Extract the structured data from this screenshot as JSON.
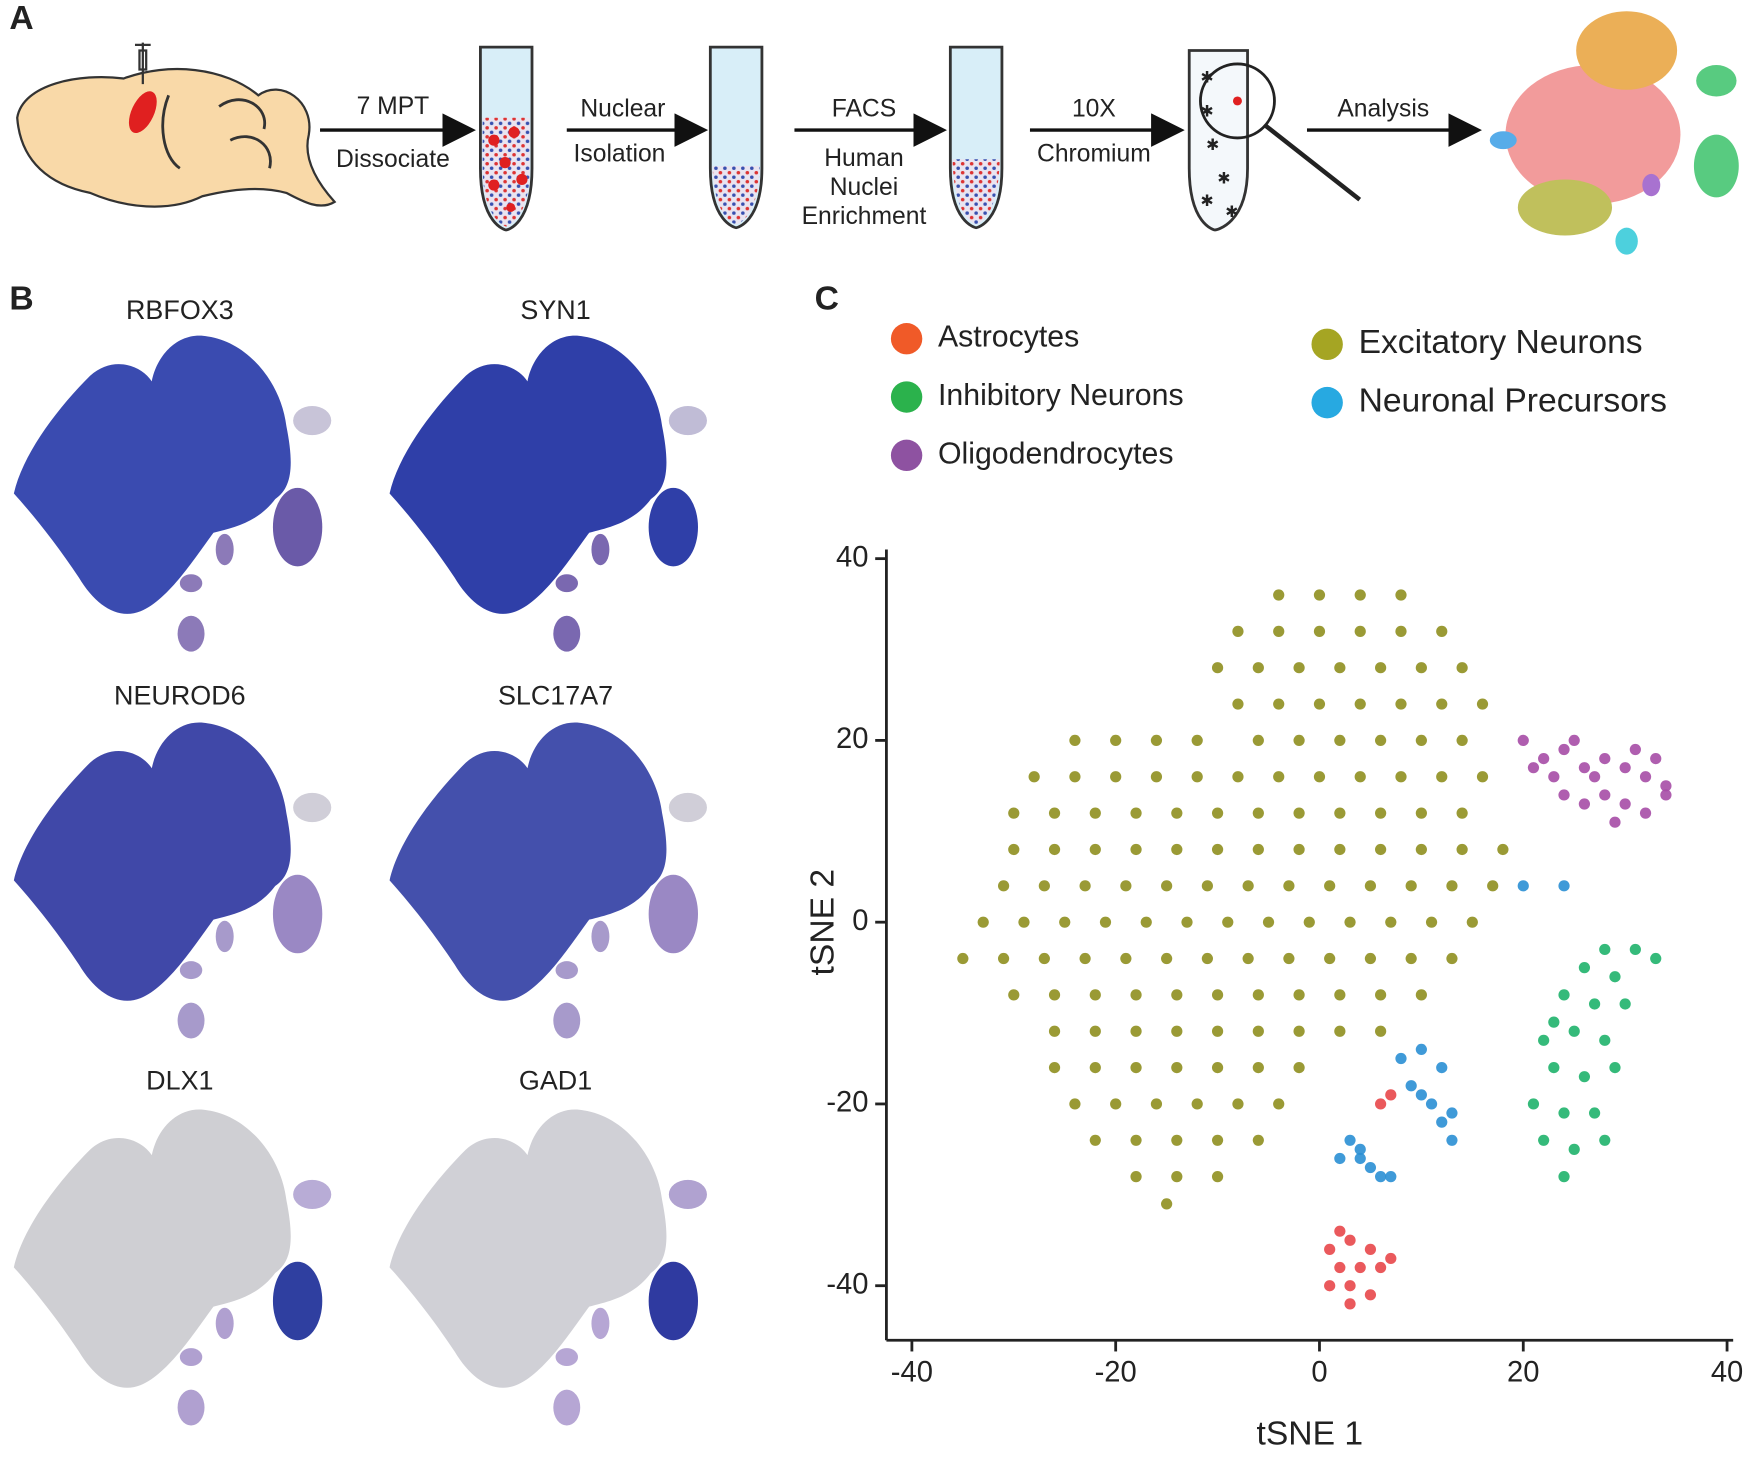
{
  "panel_labels": [
    "A",
    "B",
    "C"
  ],
  "workflow": {
    "steps": [
      {
        "lines": [
          "7 MPT",
          "Dissociate"
        ]
      },
      {
        "lines": [
          "Nuclear",
          "Isolation"
        ]
      },
      {
        "lines": [
          "FACS",
          "Human",
          "Nuclei",
          "Enrichment"
        ]
      },
      {
        "lines": [
          "10X",
          "Chromium"
        ]
      },
      {
        "lines": [
          "Analysis"
        ]
      }
    ]
  },
  "feature_plots": [
    {
      "gene": "RBFOX3"
    },
    {
      "gene": "SYN1"
    },
    {
      "gene": "NEUROD6"
    },
    {
      "gene": "SLC17A7"
    },
    {
      "gene": "DLX1"
    },
    {
      "gene": "GAD1"
    }
  ],
  "chart_data": {
    "type": "scatter",
    "xlabel": "tSNE 1",
    "ylabel": "tSNE 2",
    "xlim": [
      -42.5,
      40.6
    ],
    "ylim": [
      -46,
      41
    ],
    "xticks": [
      -40,
      -20,
      0,
      20,
      40
    ],
    "yticks": [
      -40,
      -20,
      0,
      20,
      40
    ],
    "series": [
      {
        "name": "Astrocytes",
        "color": "#f05a28",
        "point_color": "#e8474a",
        "x": [
          1,
          3,
          5,
          2,
          4,
          6,
          1,
          3,
          5,
          3,
          7,
          2,
          6,
          7
        ],
        "y": [
          -36,
          -35,
          -36,
          -38,
          -38,
          -38,
          -40,
          -40,
          -41,
          -42,
          -37,
          -34,
          -20,
          -19
        ]
      },
      {
        "name": "Inhibitory Neurons",
        "color": "#2bb24c",
        "point_color": "#1fb36b",
        "x": [
          28,
          31,
          33,
          26,
          29,
          24,
          27,
          25,
          22,
          28,
          23,
          26,
          29,
          21,
          24,
          27,
          22,
          25,
          28,
          24,
          30,
          23
        ],
        "y": [
          -3,
          -3,
          -4,
          -5,
          -6,
          -8,
          -9,
          -12,
          -13,
          -13,
          -16,
          -17,
          -16,
          -20,
          -21,
          -21,
          -24,
          -25,
          -24,
          -28,
          -9,
          -11
        ]
      },
      {
        "name": "Oligodendrocytes",
        "color": "#8e52a1",
        "point_color": "#a64ca6",
        "x": [
          22,
          24,
          26,
          28,
          30,
          32,
          34,
          24,
          26,
          28,
          30,
          32,
          34,
          27,
          31,
          29,
          23,
          33,
          25,
          20,
          21
        ],
        "y": [
          18,
          19,
          17,
          18,
          17,
          16,
          15,
          14,
          13,
          14,
          13,
          12,
          14,
          16,
          19,
          11,
          16,
          18,
          20,
          20,
          17
        ]
      },
      {
        "name": "Excitatory Neurons",
        "color": "#a5a523",
        "point_color": "#8f8f1f",
        "x": [
          -4,
          0,
          4,
          8,
          -8,
          -4,
          0,
          4,
          8,
          12,
          -10,
          -6,
          -2,
          2,
          6,
          10,
          14,
          -8,
          -4,
          0,
          4,
          8,
          12,
          16,
          -24,
          -20,
          -16,
          -12,
          -6,
          -2,
          2,
          6,
          10,
          14,
          -28,
          -24,
          -20,
          -16,
          -12,
          -8,
          -4,
          0,
          4,
          8,
          12,
          16,
          -30,
          -26,
          -22,
          -18,
          -14,
          -10,
          -6,
          -2,
          2,
          6,
          10,
          14,
          -30,
          -26,
          -22,
          -18,
          -14,
          -10,
          -6,
          -2,
          2,
          6,
          10,
          14,
          18,
          -31,
          -27,
          -23,
          -19,
          -15,
          -11,
          -7,
          -3,
          1,
          5,
          9,
          13,
          17,
          -33,
          -29,
          -25,
          -21,
          -17,
          -13,
          -9,
          -5,
          -1,
          3,
          7,
          11,
          15,
          -35,
          -31,
          -27,
          -23,
          -19,
          -15,
          -11,
          -7,
          -3,
          1,
          5,
          9,
          13,
          -30,
          -26,
          -22,
          -18,
          -14,
          -10,
          -6,
          -2,
          2,
          6,
          10,
          -26,
          -22,
          -18,
          -14,
          -10,
          -6,
          -2,
          2,
          6,
          -26,
          -22,
          -18,
          -14,
          -10,
          -6,
          -2,
          -24,
          -20,
          -16,
          -12,
          -8,
          -4,
          -22,
          -18,
          -14,
          -10,
          -6,
          -18,
          -14,
          -10,
          -15
        ],
        "y": [
          36,
          36,
          36,
          36,
          32,
          32,
          32,
          32,
          32,
          32,
          28,
          28,
          28,
          28,
          28,
          28,
          28,
          24,
          24,
          24,
          24,
          24,
          24,
          24,
          20,
          20,
          20,
          20,
          20,
          20,
          20,
          20,
          20,
          20,
          16,
          16,
          16,
          16,
          16,
          16,
          16,
          16,
          16,
          16,
          16,
          16,
          12,
          12,
          12,
          12,
          12,
          12,
          12,
          12,
          12,
          12,
          12,
          12,
          8,
          8,
          8,
          8,
          8,
          8,
          8,
          8,
          8,
          8,
          8,
          8,
          8,
          4,
          4,
          4,
          4,
          4,
          4,
          4,
          4,
          4,
          4,
          4,
          4,
          4,
          0,
          0,
          0,
          0,
          0,
          0,
          0,
          0,
          0,
          0,
          0,
          0,
          0,
          -4,
          -4,
          -4,
          -4,
          -4,
          -4,
          -4,
          -4,
          -4,
          -4,
          -4,
          -4,
          -4,
          -8,
          -8,
          -8,
          -8,
          -8,
          -8,
          -8,
          -8,
          -8,
          -8,
          -8,
          -12,
          -12,
          -12,
          -12,
          -12,
          -12,
          -12,
          -12,
          -12,
          -16,
          -16,
          -16,
          -16,
          -16,
          -16,
          -16,
          -20,
          -20,
          -20,
          -20,
          -20,
          -20,
          -24,
          -24,
          -24,
          -24,
          -24,
          -28,
          -28,
          -28,
          -31
        ]
      },
      {
        "name": "Neuronal Precursors",
        "color": "#27a9e1",
        "point_color": "#2a8fd4",
        "x": [
          8,
          10,
          12,
          9,
          11,
          12,
          13,
          10,
          13,
          3,
          4,
          5,
          6,
          2,
          4,
          7,
          20,
          24
        ],
        "y": [
          -15,
          -14,
          -16,
          -18,
          -20,
          -22,
          -24,
          -19,
          -21,
          -24,
          -26,
          -27,
          -28,
          -26,
          -25,
          -28,
          4,
          4
        ]
      }
    ]
  }
}
